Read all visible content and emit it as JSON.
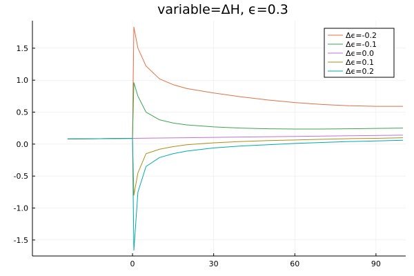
{
  "chart_data": {
    "type": "line",
    "title": "variable=ΔH, ϵ=0.3",
    "xlabel": "",
    "ylabel": "",
    "xlim": [
      -37,
      101
    ],
    "ylim": [
      -1.75,
      1.93
    ],
    "x_ticks": [
      0,
      30,
      60,
      90
    ],
    "x_tick_labels": [
      "0",
      "30",
      "60",
      "90"
    ],
    "y_ticks": [
      -1.5,
      -1.0,
      -0.5,
      0.0,
      0.5,
      1.0,
      1.5
    ],
    "y_tick_labels": [
      "-1.5",
      "-1.0",
      "-0.5",
      "0.0",
      "0.5",
      "1.0",
      "1.5"
    ],
    "grid": true,
    "legend_position": "top-right",
    "series": [
      {
        "name": "Δϵ=-0.2",
        "color": "#e26f46",
        "x": [
          -24,
          -12,
          0,
          0.5,
          2,
          5,
          10,
          15,
          20,
          30,
          40,
          50,
          60,
          70,
          80,
          90,
          100
        ],
        "y": [
          0.08,
          0.085,
          0.09,
          1.83,
          1.5,
          1.22,
          1.02,
          0.93,
          0.87,
          0.8,
          0.74,
          0.69,
          0.65,
          0.62,
          0.6,
          0.59,
          0.59
        ]
      },
      {
        "name": "Δϵ=-0.1",
        "color": "#3da44d",
        "x": [
          -24,
          -12,
          0,
          0.5,
          2,
          5,
          10,
          15,
          20,
          30,
          40,
          50,
          60,
          70,
          80,
          90,
          100
        ],
        "y": [
          0.08,
          0.085,
          0.09,
          0.96,
          0.75,
          0.5,
          0.38,
          0.33,
          0.3,
          0.27,
          0.25,
          0.24,
          0.235,
          0.235,
          0.24,
          0.245,
          0.25
        ]
      },
      {
        "name": "Δϵ=0.0",
        "color": "#c271d2",
        "x": [
          -24,
          -12,
          0,
          20,
          40,
          60,
          80,
          100
        ],
        "y": [
          0.08,
          0.085,
          0.09,
          0.1,
          0.11,
          0.12,
          0.13,
          0.14
        ]
      },
      {
        "name": "Δϵ=0.1",
        "color": "#ac8d18",
        "x": [
          -24,
          -12,
          0,
          0.5,
          2,
          5,
          10,
          15,
          20,
          30,
          40,
          50,
          60,
          70,
          80,
          90,
          100
        ],
        "y": [
          0.08,
          0.085,
          0.09,
          -0.8,
          -0.45,
          -0.15,
          -0.08,
          -0.04,
          -0.01,
          0.02,
          0.04,
          0.055,
          0.065,
          0.075,
          0.085,
          0.09,
          0.1
        ]
      },
      {
        "name": "Δϵ=0.2",
        "color": "#00a9ad",
        "x": [
          -24,
          -12,
          0,
          0.5,
          2,
          5,
          10,
          15,
          20,
          30,
          40,
          50,
          60,
          70,
          80,
          90,
          100
        ],
        "y": [
          0.08,
          0.085,
          0.09,
          -1.66,
          -0.75,
          -0.35,
          -0.21,
          -0.15,
          -0.11,
          -0.06,
          -0.03,
          -0.01,
          0.01,
          0.025,
          0.04,
          0.05,
          0.06
        ]
      }
    ]
  }
}
